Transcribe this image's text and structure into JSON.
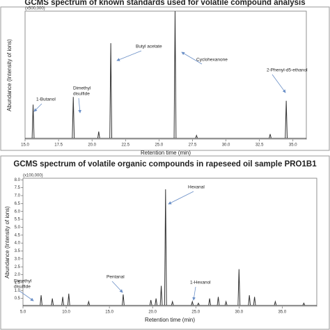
{
  "chart_data": [
    {
      "type": "spectrum",
      "title": "GCMS spectrum of known standards used for volatile compound analysis",
      "multiplier": "(x500,000)",
      "xlabel": "Retention time (min)",
      "ylabel": "Abundance (Intensity of ions)",
      "xlim": [
        15.0,
        36.0
      ],
      "xticks": [
        {
          "value": 15,
          "label": "15.0"
        },
        17.5,
        {
          "value": 20,
          "label": "20.0"
        },
        22.5,
        {
          "value": 25,
          "label": "25.0"
        },
        27.5,
        {
          "value": 30,
          "label": "30.0"
        },
        32.5,
        {
          "value": 35,
          "label": "35.0"
        }
      ],
      "ylim": [
        0,
        1
      ],
      "x": [
        15.6,
        18.6,
        20.5,
        21.4,
        26.2,
        27.8,
        33.3,
        34.5
      ],
      "values": [
        0.27,
        0.33,
        0.06,
        0.75,
        1.0,
        0.03,
        0.04,
        0.3
      ],
      "color": "#333333",
      "annotations": [
        [
          "1-Butanol"
        ],
        [
          "Dimethyl",
          "disulfide"
        ],
        [
          "Butyl acetate"
        ],
        [
          "Cyclohexanone"
        ],
        [
          "2-Phenyl-d5-ethanol"
        ]
      ]
    },
    {
      "type": "spectrum",
      "title": "GCMS spectrum of volatile organic compounds in rapeseed oil sample PRO1B1",
      "multiplier": "(x100,000)",
      "xlabel": "Retention time (min)",
      "ylabel": "Abundance (Intensity of ions)",
      "xlim": [
        5.0,
        39.0
      ],
      "xticks": [
        {
          "value": 5,
          "label": "5.0"
        },
        {
          "value": 10,
          "label": "10.0"
        },
        {
          "value": 15,
          "label": "15.0"
        },
        {
          "value": 20,
          "label": "20.0"
        },
        {
          "value": 25,
          "label": "25.0"
        },
        {
          "value": 30,
          "label": "30.0"
        },
        {
          "value": 35,
          "label": "35.0"
        }
      ],
      "ylim": [
        0,
        8.1
      ],
      "yticks": [
        0.5,
        {
          "value": 1,
          "label": "1.0"
        },
        1.5,
        {
          "value": 2,
          "label": "2.0"
        },
        2.5,
        {
          "value": 3,
          "label": "3.0"
        },
        3.5,
        {
          "value": 4,
          "label": "4.0"
        },
        4.5,
        {
          "value": 5,
          "label": "5.0"
        },
        5.5,
        {
          "value": 6,
          "label": "6.0"
        },
        6.5,
        {
          "value": 7,
          "label": "7.0"
        },
        7.5,
        {
          "value": 8,
          "label": "8.0"
        }
      ],
      "x": [
        7.1,
        8.4,
        9.6,
        10.3,
        12.6,
        16.6,
        19.8,
        20.4,
        21.0,
        21.5,
        22.3,
        24.6,
        25.3,
        26.6,
        27.6,
        28.5,
        30.0,
        31.2,
        31.8,
        34.2,
        37.5
      ],
      "values": [
        0.7,
        0.5,
        0.6,
        0.8,
        0.3,
        0.75,
        0.4,
        0.5,
        1.3,
        7.4,
        0.3,
        0.3,
        0.2,
        0.5,
        0.6,
        0.3,
        2.35,
        0.7,
        0.6,
        0.3,
        0.2
      ],
      "color": "#333333",
      "annotations": [
        [
          "Hexanal"
        ],
        [
          "Dimethyl",
          "disulfide"
        ],
        [
          "Pentanal"
        ],
        [
          "1-Hexanol"
        ]
      ]
    }
  ]
}
